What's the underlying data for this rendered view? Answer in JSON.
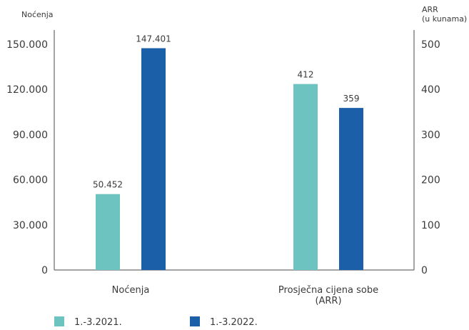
{
  "chart_data": {
    "type": "bar",
    "title": "",
    "categories": [
      "Noćenja",
      "Prosječna cijena sobe (ARR)"
    ],
    "category_label_lines": [
      [
        "Noćenja"
      ],
      [
        "Prosječna cijena sobe",
        "(ARR)"
      ]
    ],
    "series": [
      {
        "name": "1.-3.2021.",
        "color": "#6cc3bf",
        "values": [
          50452,
          412
        ],
        "labels": [
          "50.452",
          "412"
        ]
      },
      {
        "name": "1.-3.2022.",
        "color": "#1a5fa8",
        "values": [
          147401,
          359
        ],
        "labels": [
          "147.401",
          "359"
        ]
      }
    ],
    "axis_assignment": [
      "left",
      "right"
    ],
    "left_axis": {
      "label": "Noćenja",
      "ylim": [
        0,
        150000
      ],
      "ticks": [
        0,
        30000,
        60000,
        90000,
        120000,
        150000
      ],
      "tick_labels": [
        "0",
        "30.000",
        "60.000",
        "90.000",
        "120.000",
        "150.000"
      ]
    },
    "right_axis": {
      "label_lines": [
        "ARR",
        "(u kunama)"
      ],
      "ylim": [
        0,
        500
      ],
      "ticks": [
        0,
        100,
        200,
        300,
        400,
        500
      ],
      "tick_labels": [
        "0",
        "100",
        "200",
        "300",
        "400",
        "500"
      ]
    },
    "grid": false,
    "legend_position": "bottom-left"
  }
}
